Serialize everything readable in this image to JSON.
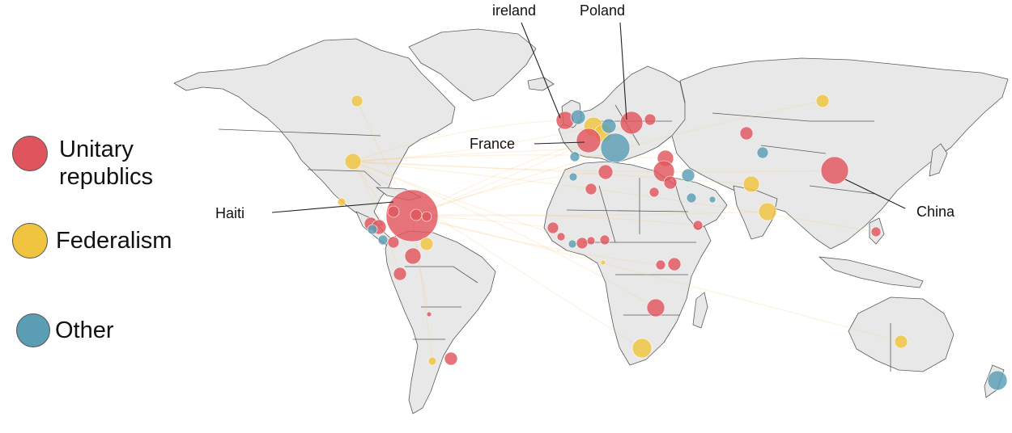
{
  "legend": {
    "unitary": {
      "label_line1": "Unitary",
      "label_line2": "republics",
      "color": "#e0555d"
    },
    "federalism": {
      "label": "Federalism",
      "color": "#f0c43f"
    },
    "other": {
      "label": "Other",
      "color": "#5b9db5"
    }
  },
  "map_colors": {
    "land": "#e8e8e8",
    "border": "#5a5a5a",
    "flow": "#f6c77a"
  },
  "callouts": {
    "ireland": "ireland",
    "poland": "Poland",
    "france": "France",
    "haiti": "Haiti",
    "china": "China"
  }
}
